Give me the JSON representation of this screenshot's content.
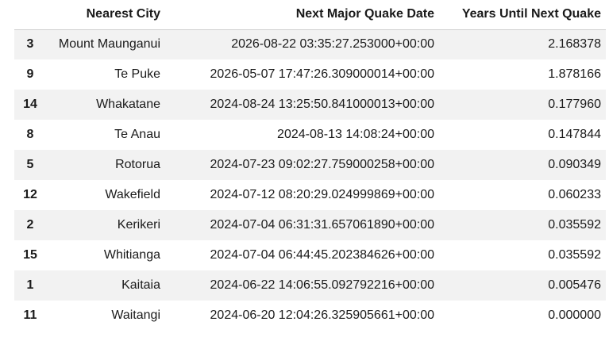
{
  "table": {
    "columns": [
      "",
      "Nearest City",
      "Next Major Quake Date",
      "Years Until Next Quake"
    ],
    "rows": [
      {
        "index": "3",
        "city": "Mount Maunganui",
        "date": "2026-08-22 03:35:27.253000+00:00",
        "years": "2.168378"
      },
      {
        "index": "9",
        "city": "Te Puke",
        "date": "2026-05-07 17:47:26.309000014+00:00",
        "years": "1.878166"
      },
      {
        "index": "14",
        "city": "Whakatane",
        "date": "2024-08-24 13:25:50.841000013+00:00",
        "years": "0.177960"
      },
      {
        "index": "8",
        "city": "Te Anau",
        "date": "2024-08-13 14:08:24+00:00",
        "years": "0.147844"
      },
      {
        "index": "5",
        "city": "Rotorua",
        "date": "2024-07-23 09:02:27.759000258+00:00",
        "years": "0.090349"
      },
      {
        "index": "12",
        "city": "Wakefield",
        "date": "2024-07-12 08:20:29.024999869+00:00",
        "years": "0.060233"
      },
      {
        "index": "2",
        "city": "Kerikeri",
        "date": "2024-07-04 06:31:31.657061890+00:00",
        "years": "0.035592"
      },
      {
        "index": "15",
        "city": "Whitianga",
        "date": "2024-07-04 06:44:45.202384626+00:00",
        "years": "0.035592"
      },
      {
        "index": "1",
        "city": "Kaitaia",
        "date": "2024-06-22 14:06:55.092792216+00:00",
        "years": "0.005476"
      },
      {
        "index": "11",
        "city": "Waitangi",
        "date": "2024-06-20 12:04:26.325905661+00:00",
        "years": "0.000000"
      }
    ]
  }
}
